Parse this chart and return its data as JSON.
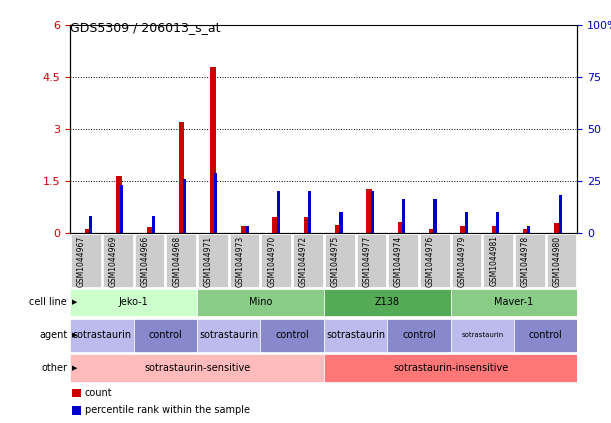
{
  "title": "GDS5309 / 206013_s_at",
  "samples": [
    "GSM1044967",
    "GSM1044969",
    "GSM1044966",
    "GSM1044968",
    "GSM1044971",
    "GSM1044973",
    "GSM1044970",
    "GSM1044972",
    "GSM1044975",
    "GSM1044977",
    "GSM1044974",
    "GSM1044976",
    "GSM1044979",
    "GSM1044981",
    "GSM1044978",
    "GSM1044980"
  ],
  "count_values": [
    0.1,
    1.65,
    0.15,
    3.2,
    4.8,
    0.18,
    0.45,
    0.45,
    0.22,
    1.25,
    0.3,
    0.12,
    0.18,
    0.18,
    0.12,
    0.28
  ],
  "percentile_values": [
    8,
    23,
    8,
    26,
    29,
    3,
    20,
    20,
    10,
    20,
    16,
    16,
    10,
    10,
    3,
    18
  ],
  "ylim_left": [
    0,
    6
  ],
  "ylim_right": [
    0,
    100
  ],
  "yticks_left": [
    0,
    1.5,
    3.0,
    4.5,
    6.0
  ],
  "yticks_left_labels": [
    "0",
    "1.5",
    "3",
    "4.5",
    "6"
  ],
  "yticks_right": [
    0,
    25,
    50,
    75,
    100
  ],
  "yticks_right_labels": [
    "0",
    "25",
    "50",
    "75",
    "100%"
  ],
  "bar_color_red": "#cc0000",
  "bar_color_blue": "#0000cc",
  "cell_line_data": [
    {
      "label": "Jeko-1",
      "start": 0,
      "end": 4,
      "color": "#ccffcc"
    },
    {
      "label": "Mino",
      "start": 4,
      "end": 8,
      "color": "#88cc88"
    },
    {
      "label": "Z138",
      "start": 8,
      "end": 12,
      "color": "#55aa55"
    },
    {
      "label": "Maver-1",
      "start": 12,
      "end": 16,
      "color": "#88cc88"
    }
  ],
  "agent_data": [
    {
      "label": "sotrastaurin",
      "start": 0,
      "end": 2,
      "color": "#bbbbee",
      "fontsize": 7
    },
    {
      "label": "control",
      "start": 2,
      "end": 4,
      "color": "#8888cc",
      "fontsize": 7
    },
    {
      "label": "sotrastaurin",
      "start": 4,
      "end": 6,
      "color": "#bbbbee",
      "fontsize": 7
    },
    {
      "label": "control",
      "start": 6,
      "end": 8,
      "color": "#8888cc",
      "fontsize": 7
    },
    {
      "label": "sotrastaurin",
      "start": 8,
      "end": 10,
      "color": "#bbbbee",
      "fontsize": 7
    },
    {
      "label": "control",
      "start": 10,
      "end": 12,
      "color": "#8888cc",
      "fontsize": 7
    },
    {
      "label": "sotrastaurin",
      "start": 12,
      "end": 14,
      "color": "#bbbbee",
      "fontsize": 5
    },
    {
      "label": "control",
      "start": 14,
      "end": 16,
      "color": "#8888cc",
      "fontsize": 7
    }
  ],
  "other_data": [
    {
      "label": "sotrastaurin-sensitive",
      "start": 0,
      "end": 8,
      "color": "#ffbbbb"
    },
    {
      "label": "sotrastaurin-insensitive",
      "start": 8,
      "end": 16,
      "color": "#ff7777"
    }
  ],
  "row_labels": [
    "cell line",
    "agent",
    "other"
  ],
  "legend_items": [
    {
      "color": "#cc0000",
      "label": "count"
    },
    {
      "color": "#0000cc",
      "label": "percentile rank within the sample"
    }
  ],
  "tick_color_left": "#cc0000",
  "tick_color_right": "#0000bb",
  "bg_color": "#ffffff",
  "xticklabel_bg": "#cccccc"
}
